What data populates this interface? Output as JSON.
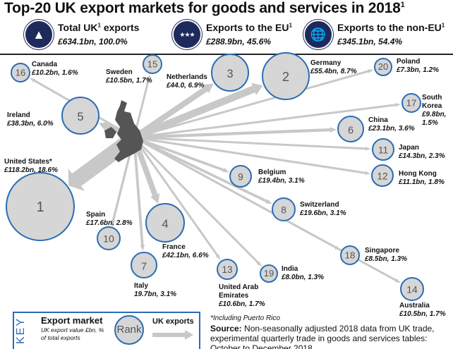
{
  "title": "Top-20 UK export markets for goods and services in 2018",
  "title_sup": "1",
  "summary": [
    {
      "label": "Total UK",
      "sup": "1",
      "label_after": " exports",
      "value": "£634.1bn, 100.0%",
      "icon": "uk-map-icon"
    },
    {
      "label": "Exports to the EU",
      "sup": "1",
      "label_after": "",
      "value": "£288.9bn, 45.6%",
      "icon": "eu-stars-icon"
    },
    {
      "label": "Exports to the non-EU",
      "sup": "1",
      "label_after": "",
      "value": "£345.1bn, 54.4%",
      "icon": "globe-icon"
    }
  ],
  "colors": {
    "circle_fill": "#d6d6d6",
    "circle_stroke": "#2a6db5",
    "arrow": "#c8c8c8",
    "map": "#555555",
    "icon_bg": "#1f2a5c"
  },
  "markets": [
    {
      "rank": 1,
      "name": "United States*",
      "value_bn": 118.2,
      "label": "£118.2bn, 18.6%"
    },
    {
      "rank": 2,
      "name": "Germany",
      "value_bn": 55.4,
      "label": "£55.4bn, 8.7%"
    },
    {
      "rank": 3,
      "name": "Netherlands",
      "value_bn": 44.0,
      "label": "£44.0, 6.9%"
    },
    {
      "rank": 4,
      "name": "France",
      "value_bn": 42.1,
      "label": "£42.1bn, 6.6%"
    },
    {
      "rank": 5,
      "name": "Ireland",
      "value_bn": 38.3,
      "label": "£38.3bn, 6.0%"
    },
    {
      "rank": 6,
      "name": "China",
      "value_bn": 23.1,
      "label": "£23.1bn, 3.6%"
    },
    {
      "rank": 7,
      "name": "Italy",
      "value_bn": 19.7,
      "label": "19.7bn, 3.1%"
    },
    {
      "rank": 8,
      "name": "Switzerland",
      "value_bn": 19.6,
      "label": "£19.6bn, 3.1%"
    },
    {
      "rank": 9,
      "name": "Belgium",
      "value_bn": 19.4,
      "label": "£19.4bn, 3.1%"
    },
    {
      "rank": 10,
      "name": "Spain",
      "value_bn": 17.6,
      "label": "£17.6bn, 2.8%"
    },
    {
      "rank": 11,
      "name": "Japan",
      "value_bn": 14.3,
      "label": "£14.3bn, 2.3%"
    },
    {
      "rank": 12,
      "name": "Hong Kong",
      "value_bn": 11.1,
      "label": "£11.1bn, 1.8%"
    },
    {
      "rank": 13,
      "name": "United Arab Emirates",
      "value_bn": 10.6,
      "label": "£10.6bn, 1.7%"
    },
    {
      "rank": 14,
      "name": "Australia",
      "value_bn": 10.5,
      "label": "£10.5bn, 1.7%"
    },
    {
      "rank": 15,
      "name": "Sweden",
      "value_bn": 10.5,
      "label": "£10.5bn, 1.7%"
    },
    {
      "rank": 16,
      "name": "Canada",
      "value_bn": 10.2,
      "label": "£10.2bn, 1.6%"
    },
    {
      "rank": 17,
      "name": "South Korea",
      "value_bn": 9.8,
      "label": "£9.8bn, 1.5%"
    },
    {
      "rank": 18,
      "name": "Singapore",
      "value_bn": 8.5,
      "label": "£8.5bn, 1.3%"
    },
    {
      "rank": 19,
      "name": "India",
      "value_bn": 8.0,
      "label": "£8.0bn, 1.3%"
    },
    {
      "rank": 20,
      "name": "Poland",
      "value_bn": 7.3,
      "label": "£7.3bn, 1.2%"
    }
  ],
  "key": {
    "word": "KEY",
    "title": "Export market",
    "subtitle": "UK export value £bn, % of total exports",
    "rank": "Rank",
    "arrow_label": "UK exports"
  },
  "footnote": "*Including Puerto Rico",
  "source_label": "Source:",
  "source_text": " Non-seasonally adjusted 2018 data from UK trade, experimental quarterly trade in goods and services tables: October to December 2018"
}
